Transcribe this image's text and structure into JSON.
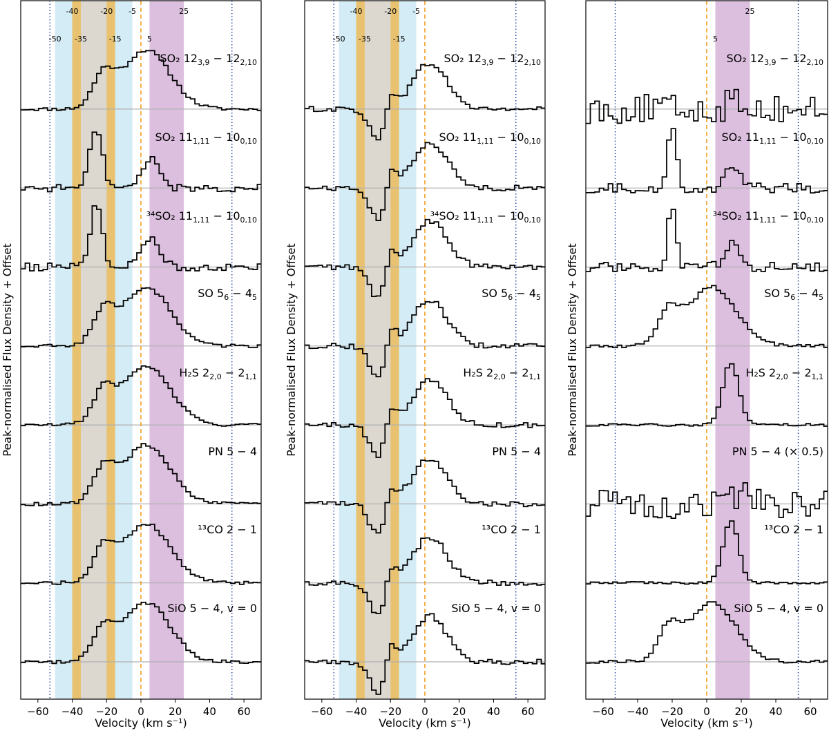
{
  "chart_data": [
    {
      "type": "line",
      "panel": "left",
      "xlabel": "Velocity (km s⁻¹)",
      "ylabel": "Peak-normalised Flux Density + Offset",
      "xlim": [
        -70,
        70
      ],
      "xticks": [
        "−60",
        "−40",
        "−20",
        "0",
        "20",
        "40",
        "60"
      ],
      "xtick_values": [
        -60,
        -40,
        -20,
        0,
        20,
        40,
        60
      ],
      "systemic_velocity": 0,
      "dotted_lines": [
        -53,
        53
      ],
      "shaded_bands": [
        {
          "from": -50,
          "to": -5,
          "color": "#d4ecf5"
        },
        {
          "from": -40,
          "to": -15,
          "color": "#e8c270"
        },
        {
          "from": -35,
          "to": -20,
          "color": "#dcd8d0"
        },
        {
          "from": 5,
          "to": 25,
          "color": "#dcbfdf"
        }
      ],
      "band_labels": [
        "-50",
        "-40",
        "-35",
        "-20",
        "-15",
        "-5",
        "5",
        "25"
      ],
      "band_label_values": [
        -50,
        -40,
        -35,
        -20,
        -15,
        -5,
        5,
        25
      ],
      "series": [
        {
          "name": "SO₂ 12(3,9) − 12(2,10)",
          "offset": 7,
          "shape": "broad",
          "note": "noisy"
        },
        {
          "name": "SO₂ 11(1,11) − 10(0,10)",
          "offset": 6,
          "shape": "twin-peak"
        },
        {
          "name": "³⁴SO₂ 11(1,11) − 10(0,10)",
          "offset": 5,
          "shape": "twin-peak",
          "note": "noisy"
        },
        {
          "name": "SO 5(6) − 4(5)",
          "offset": 4,
          "shape": "broad"
        },
        {
          "name": "H₂S 2(2,0) − 2(1,1)",
          "offset": 3,
          "shape": "broad"
        },
        {
          "name": "PN 5 − 4",
          "offset": 2,
          "shape": "broad"
        },
        {
          "name": "¹³CO 2 − 1",
          "offset": 1,
          "shape": "broad"
        },
        {
          "name": "SiO 5 − 4, v = 0",
          "offset": 0,
          "shape": "broad"
        }
      ]
    },
    {
      "type": "line",
      "panel": "middle",
      "xlabel": "Velocity (km s⁻¹)",
      "ylabel": "Peak-normalised Flux Density + Offset",
      "xlim": [
        -70,
        70
      ],
      "xticks": [
        "−60",
        "−40",
        "−20",
        "0",
        "20",
        "40",
        "60"
      ],
      "xtick_values": [
        -60,
        -40,
        -20,
        0,
        20,
        40,
        60
      ],
      "systemic_velocity": 0,
      "dotted_lines": [
        -53,
        53
      ],
      "shaded_bands": [
        {
          "from": -50,
          "to": -5,
          "color": "#d4ecf5"
        },
        {
          "from": -40,
          "to": -15,
          "color": "#e8c270"
        },
        {
          "from": -35,
          "to": -20,
          "color": "#dcd8d0"
        }
      ],
      "band_labels": [
        "-50",
        "-40",
        "-35",
        "-20",
        "-15",
        "-5"
      ],
      "band_label_values": [
        -50,
        -40,
        -35,
        -20,
        -15,
        -5
      ],
      "series": [
        {
          "name": "SO₂ 12(3,9) − 12(2,10)",
          "offset": 7,
          "shape": "absorption-mixed"
        },
        {
          "name": "SO₂ 11(1,11) − 10(0,10)",
          "offset": 6,
          "shape": "absorption-mixed"
        },
        {
          "name": "³⁴SO₂ 11(1,11) − 10(0,10)",
          "offset": 5,
          "shape": "absorption-mixed"
        },
        {
          "name": "SO 5(6) − 4(5)",
          "offset": 4,
          "shape": "absorption-mixed"
        },
        {
          "name": "H₂S 2(2,0) − 2(1,1)",
          "offset": 3,
          "shape": "absorption-mixed"
        },
        {
          "name": "PN 5 − 4",
          "offset": 2,
          "shape": "absorption-mixed"
        },
        {
          "name": "¹³CO 2 − 1",
          "offset": 1,
          "shape": "absorption-mixed"
        },
        {
          "name": "SiO 5 − 4, v = 0",
          "offset": 0,
          "shape": "absorption-mixed"
        }
      ]
    },
    {
      "type": "line",
      "panel": "right",
      "xlabel": "Velocity (km s⁻¹)",
      "ylabel": "Peak-normalised Flux Density + Offset",
      "xlim": [
        -70,
        70
      ],
      "xticks": [
        "−60",
        "−40",
        "−20",
        "0",
        "20",
        "40",
        "60"
      ],
      "xtick_values": [
        -60,
        -40,
        -20,
        0,
        20,
        40,
        60
      ],
      "systemic_velocity": 0,
      "dotted_lines": [
        -53,
        53
      ],
      "shaded_bands": [
        {
          "from": 5,
          "to": 25,
          "color": "#dcbfdf"
        }
      ],
      "band_labels": [
        "5",
        "25"
      ],
      "band_label_values": [
        5,
        25
      ],
      "series": [
        {
          "name": "SO₂ 12(3,9) − 12(2,10)",
          "offset": 7,
          "shape": "noise"
        },
        {
          "name": "SO₂ 11(1,11) − 10(0,10)",
          "offset": 6,
          "shape": "narrow-pair"
        },
        {
          "name": "³⁴SO₂ 11(1,11) − 10(0,10)",
          "offset": 5,
          "shape": "narrow-pair",
          "note": "noisy"
        },
        {
          "name": "SO 5(6) − 4(5)",
          "offset": 4,
          "shape": "broad"
        },
        {
          "name": "H₂S 2(2,0) − 2(1,1)",
          "offset": 3,
          "shape": "narrow"
        },
        {
          "name": "PN 5 − 4 (× 0.5)",
          "offset": 2,
          "shape": "noise"
        },
        {
          "name": "¹³CO 2 − 1",
          "offset": 1,
          "shape": "narrow"
        },
        {
          "name": "SiO 5 − 4, v = 0",
          "offset": 0,
          "shape": "broad"
        }
      ]
    }
  ]
}
